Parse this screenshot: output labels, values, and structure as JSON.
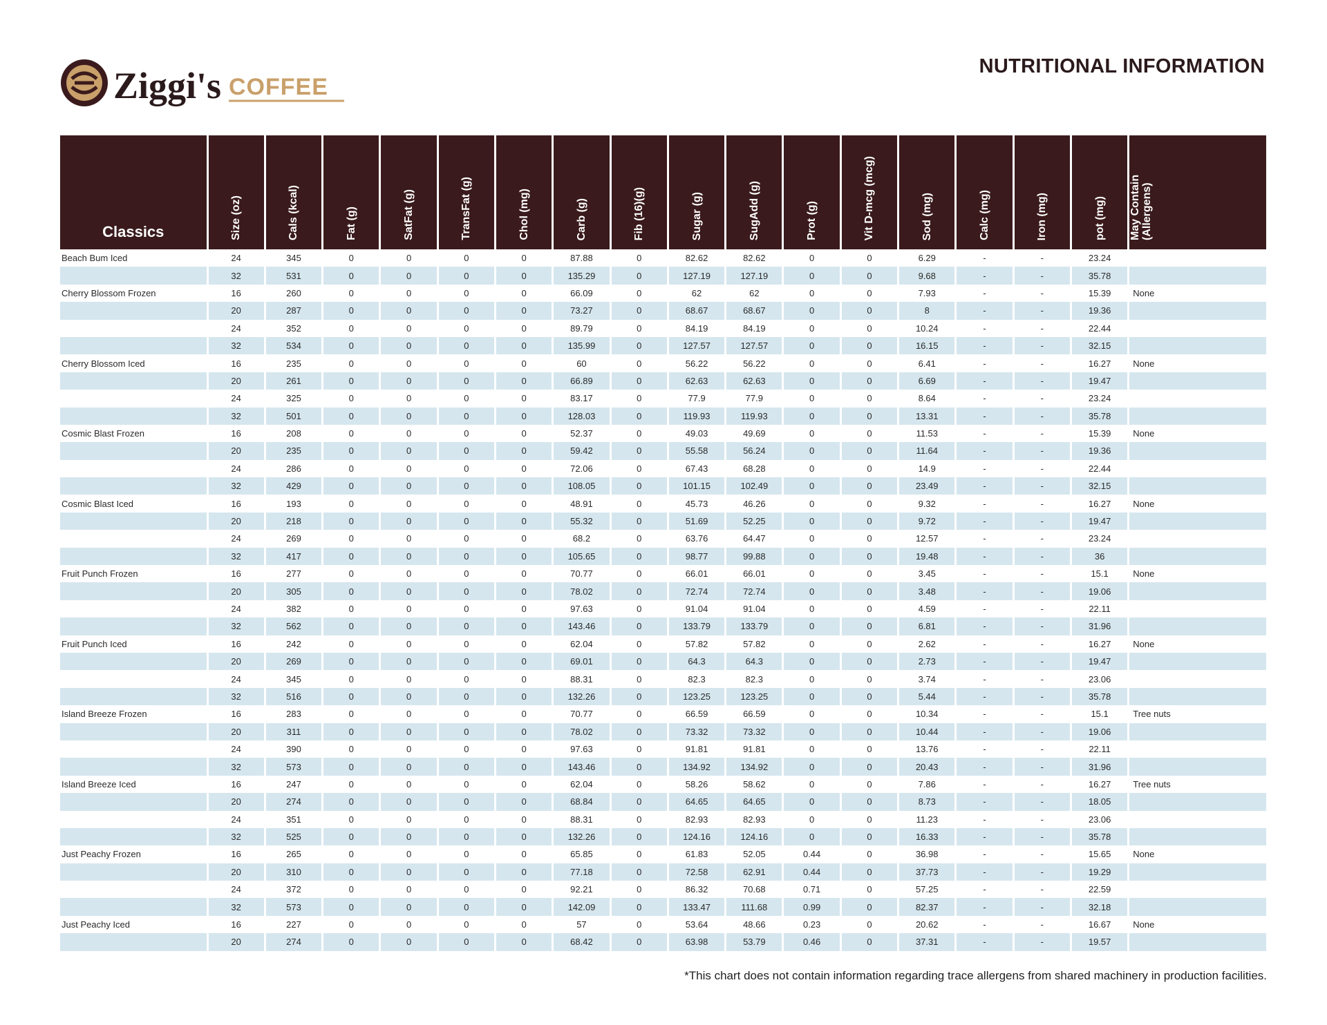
{
  "logo": {
    "name": "Ziggi's",
    "tagline": "COFFEE"
  },
  "header": {
    "title": "NUTRITIONAL INFORMATION"
  },
  "table": {
    "columns": [
      "Classics",
      "Size (oz)",
      "Cals (kcal)",
      "Fat (g)",
      "SatFat (g)",
      "TransFat (g)",
      "Chol (mg)",
      "Carb (g)",
      "Fib (16)(g)",
      "Sugar (g)",
      "SugAdd (g)",
      "Prot (g)",
      "Vit D-mcg (mcg)",
      "Sod (mg)",
      "Calc (mg)",
      "Iron (mg)",
      "pot (mg)",
      "May Contain (Allergens)"
    ],
    "rows": [
      [
        "Beach Bum Iced",
        "24",
        "345",
        "0",
        "0",
        "0",
        "0",
        "87.88",
        "0",
        "82.62",
        "82.62",
        "0",
        "0",
        "6.29",
        "-",
        "-",
        "23.24",
        null
      ],
      [
        null,
        "32",
        "531",
        "0",
        "0",
        "0",
        "0",
        "135.29",
        "0",
        "127.19",
        "127.19",
        "0",
        "0",
        "9.68",
        "-",
        "-",
        "35.78",
        null
      ],
      [
        "Cherry Blossom Frozen",
        "16",
        "260",
        "0",
        "0",
        "0",
        "0",
        "66.09",
        "0",
        "62",
        "62",
        "0",
        "0",
        "7.93",
        "-",
        "-",
        "15.39",
        "None"
      ],
      [
        null,
        "20",
        "287",
        "0",
        "0",
        "0",
        "0",
        "73.27",
        "0",
        "68.67",
        "68.67",
        "0",
        "0",
        "8",
        "-",
        "-",
        "19.36",
        null
      ],
      [
        null,
        "24",
        "352",
        "0",
        "0",
        "0",
        "0",
        "89.79",
        "0",
        "84.19",
        "84.19",
        "0",
        "0",
        "10.24",
        "-",
        "-",
        "22.44",
        null
      ],
      [
        null,
        "32",
        "534",
        "0",
        "0",
        "0",
        "0",
        "135.99",
        "0",
        "127.57",
        "127.57",
        "0",
        "0",
        "16.15",
        "-",
        "-",
        "32.15",
        null
      ],
      [
        "Cherry Blossom Iced",
        "16",
        "235",
        "0",
        "0",
        "0",
        "0",
        "60",
        "0",
        "56.22",
        "56.22",
        "0",
        "0",
        "6.41",
        "-",
        "-",
        "16.27",
        "None"
      ],
      [
        null,
        "20",
        "261",
        "0",
        "0",
        "0",
        "0",
        "66.89",
        "0",
        "62.63",
        "62.63",
        "0",
        "0",
        "6.69",
        "-",
        "-",
        "19.47",
        null
      ],
      [
        null,
        "24",
        "325",
        "0",
        "0",
        "0",
        "0",
        "83.17",
        "0",
        "77.9",
        "77.9",
        "0",
        "0",
        "8.64",
        "-",
        "-",
        "23.24",
        null
      ],
      [
        null,
        "32",
        "501",
        "0",
        "0",
        "0",
        "0",
        "128.03",
        "0",
        "119.93",
        "119.93",
        "0",
        "0",
        "13.31",
        "-",
        "-",
        "35.78",
        null
      ],
      [
        "Cosmic Blast Frozen",
        "16",
        "208",
        "0",
        "0",
        "0",
        "0",
        "52.37",
        "0",
        "49.03",
        "49.69",
        "0",
        "0",
        "11.53",
        "-",
        "-",
        "15.39",
        "None"
      ],
      [
        null,
        "20",
        "235",
        "0",
        "0",
        "0",
        "0",
        "59.42",
        "0",
        "55.58",
        "56.24",
        "0",
        "0",
        "11.64",
        "-",
        "-",
        "19.36",
        null
      ],
      [
        null,
        "24",
        "286",
        "0",
        "0",
        "0",
        "0",
        "72.06",
        "0",
        "67.43",
        "68.28",
        "0",
        "0",
        "14.9",
        "-",
        "-",
        "22.44",
        null
      ],
      [
        null,
        "32",
        "429",
        "0",
        "0",
        "0",
        "0",
        "108.05",
        "0",
        "101.15",
        "102.49",
        "0",
        "0",
        "23.49",
        "-",
        "-",
        "32.15",
        null
      ],
      [
        "Cosmic Blast Iced",
        "16",
        "193",
        "0",
        "0",
        "0",
        "0",
        "48.91",
        "0",
        "45.73",
        "46.26",
        "0",
        "0",
        "9.32",
        "-",
        "-",
        "16.27",
        "None"
      ],
      [
        null,
        "20",
        "218",
        "0",
        "0",
        "0",
        "0",
        "55.32",
        "0",
        "51.69",
        "52.25",
        "0",
        "0",
        "9.72",
        "-",
        "-",
        "19.47",
        null
      ],
      [
        null,
        "24",
        "269",
        "0",
        "0",
        "0",
        "0",
        "68.2",
        "0",
        "63.76",
        "64.47",
        "0",
        "0",
        "12.57",
        "-",
        "-",
        "23.24",
        null
      ],
      [
        null,
        "32",
        "417",
        "0",
        "0",
        "0",
        "0",
        "105.65",
        "0",
        "98.77",
        "99.88",
        "0",
        "0",
        "19.48",
        "-",
        "-",
        "36",
        null
      ],
      [
        "Fruit Punch Frozen",
        "16",
        "277",
        "0",
        "0",
        "0",
        "0",
        "70.77",
        "0",
        "66.01",
        "66.01",
        "0",
        "0",
        "3.45",
        "-",
        "-",
        "15.1",
        "None"
      ],
      [
        null,
        "20",
        "305",
        "0",
        "0",
        "0",
        "0",
        "78.02",
        "0",
        "72.74",
        "72.74",
        "0",
        "0",
        "3.48",
        "-",
        "-",
        "19.06",
        null
      ],
      [
        null,
        "24",
        "382",
        "0",
        "0",
        "0",
        "0",
        "97.63",
        "0",
        "91.04",
        "91.04",
        "0",
        "0",
        "4.59",
        "-",
        "-",
        "22.11",
        null
      ],
      [
        null,
        "32",
        "562",
        "0",
        "0",
        "0",
        "0",
        "143.46",
        "0",
        "133.79",
        "133.79",
        "0",
        "0",
        "6.81",
        "-",
        "-",
        "31.96",
        null
      ],
      [
        "Fruit Punch Iced",
        "16",
        "242",
        "0",
        "0",
        "0",
        "0",
        "62.04",
        "0",
        "57.82",
        "57.82",
        "0",
        "0",
        "2.62",
        "-",
        "-",
        "16.27",
        "None"
      ],
      [
        null,
        "20",
        "269",
        "0",
        "0",
        "0",
        "0",
        "69.01",
        "0",
        "64.3",
        "64.3",
        "0",
        "0",
        "2.73",
        "-",
        "-",
        "19.47",
        null
      ],
      [
        null,
        "24",
        "345",
        "0",
        "0",
        "0",
        "0",
        "88.31",
        "0",
        "82.3",
        "82.3",
        "0",
        "0",
        "3.74",
        "-",
        "-",
        "23.06",
        null
      ],
      [
        null,
        "32",
        "516",
        "0",
        "0",
        "0",
        "0",
        "132.26",
        "0",
        "123.25",
        "123.25",
        "0",
        "0",
        "5.44",
        "-",
        "-",
        "35.78",
        null
      ],
      [
        "Island Breeze Frozen",
        "16",
        "283",
        "0",
        "0",
        "0",
        "0",
        "70.77",
        "0",
        "66.59",
        "66.59",
        "0",
        "0",
        "10.34",
        "-",
        "-",
        "15.1",
        "Tree nuts"
      ],
      [
        null,
        "20",
        "311",
        "0",
        "0",
        "0",
        "0",
        "78.02",
        "0",
        "73.32",
        "73.32",
        "0",
        "0",
        "10.44",
        "-",
        "-",
        "19.06",
        null
      ],
      [
        null,
        "24",
        "390",
        "0",
        "0",
        "0",
        "0",
        "97.63",
        "0",
        "91.81",
        "91.81",
        "0",
        "0",
        "13.76",
        "-",
        "-",
        "22.11",
        null
      ],
      [
        null,
        "32",
        "573",
        "0",
        "0",
        "0",
        "0",
        "143.46",
        "0",
        "134.92",
        "134.92",
        "0",
        "0",
        "20.43",
        "-",
        "-",
        "31.96",
        null
      ],
      [
        "Island Breeze Iced",
        "16",
        "247",
        "0",
        "0",
        "0",
        "0",
        "62.04",
        "0",
        "58.26",
        "58.62",
        "0",
        "0",
        "7.86",
        "-",
        "-",
        "16.27",
        "Tree nuts"
      ],
      [
        null,
        "20",
        "274",
        "0",
        "0",
        "0",
        "0",
        "68.84",
        "0",
        "64.65",
        "64.65",
        "0",
        "0",
        "8.73",
        "-",
        "-",
        "18.05",
        null
      ],
      [
        null,
        "24",
        "351",
        "0",
        "0",
        "0",
        "0",
        "88.31",
        "0",
        "82.93",
        "82.93",
        "0",
        "0",
        "11.23",
        "-",
        "-",
        "23.06",
        null
      ],
      [
        null,
        "32",
        "525",
        "0",
        "0",
        "0",
        "0",
        "132.26",
        "0",
        "124.16",
        "124.16",
        "0",
        "0",
        "16.33",
        "-",
        "-",
        "35.78",
        null
      ],
      [
        "Just Peachy Frozen",
        "16",
        "265",
        "0",
        "0",
        "0",
        "0",
        "65.85",
        "0",
        "61.83",
        "52.05",
        "0.44",
        "0",
        "36.98",
        "-",
        "-",
        "15.65",
        "None"
      ],
      [
        null,
        "20",
        "310",
        "0",
        "0",
        "0",
        "0",
        "77.18",
        "0",
        "72.58",
        "62.91",
        "0.44",
        "0",
        "37.73",
        "-",
        "-",
        "19.29",
        null
      ],
      [
        null,
        "24",
        "372",
        "0",
        "0",
        "0",
        "0",
        "92.21",
        "0",
        "86.32",
        "70.68",
        "0.71",
        "0",
        "57.25",
        "-",
        "-",
        "22.59",
        null
      ],
      [
        null,
        "32",
        "573",
        "0",
        "0",
        "0",
        "0",
        "142.09",
        "0",
        "133.47",
        "111.68",
        "0.99",
        "0",
        "82.37",
        "-",
        "-",
        "32.18",
        null
      ],
      [
        "Just Peachy Iced",
        "16",
        "227",
        "0",
        "0",
        "0",
        "0",
        "57",
        "0",
        "53.64",
        "48.66",
        "0.23",
        "0",
        "20.62",
        "-",
        "-",
        "16.67",
        "None"
      ],
      [
        null,
        "20",
        "274",
        "0",
        "0",
        "0",
        "0",
        "68.42",
        "0",
        "63.98",
        "53.79",
        "0.46",
        "0",
        "37.31",
        "-",
        "-",
        "19.57",
        null
      ]
    ]
  },
  "footer": {
    "note": "*This chart does not contain information regarding trace allergens from shared machinery in production facilities."
  }
}
